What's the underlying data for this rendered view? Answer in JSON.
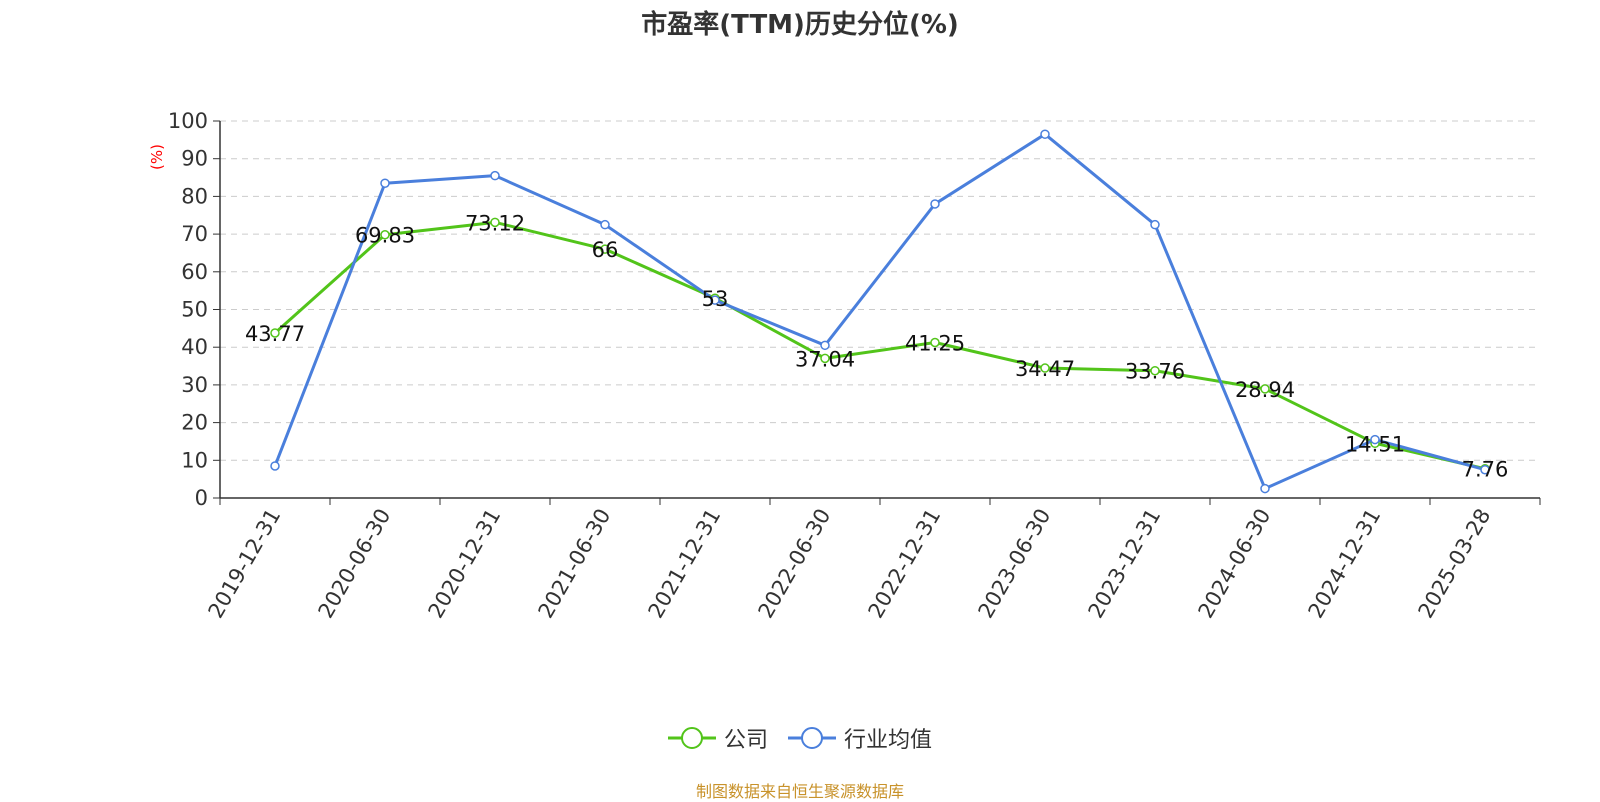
{
  "chart_data": {
    "type": "line",
    "title": "市盈率(TTM)历史分位(%)",
    "ylabel": "(%)",
    "xlabel": "",
    "ylim": [
      0,
      100
    ],
    "yticks": [
      0,
      10,
      20,
      30,
      40,
      50,
      60,
      70,
      80,
      90,
      100
    ],
    "categories": [
      "2019-12-31",
      "2020-06-30",
      "2020-12-31",
      "2021-06-30",
      "2021-12-31",
      "2022-06-30",
      "2022-12-31",
      "2023-06-30",
      "2023-12-31",
      "2024-06-30",
      "2024-12-31",
      "2025-03-28"
    ],
    "series": [
      {
        "name": "公司",
        "color": "#52c41a",
        "values": [
          43.77,
          69.83,
          73.12,
          66,
          53,
          37.04,
          41.25,
          34.47,
          33.76,
          28.94,
          14.51,
          7.76
        ],
        "data_labels": [
          "43.77",
          "69.83",
          "73.12",
          "66",
          "53",
          "37.04",
          "41.25",
          "34.47",
          "33.76",
          "28.94",
          "14.51",
          "7.76"
        ]
      },
      {
        "name": "行业均值",
        "color": "#4a7fdc",
        "values": [
          8.5,
          83.5,
          85.5,
          72.5,
          52.5,
          40.5,
          78,
          96.5,
          72.5,
          2.5,
          15.5,
          7.5
        ]
      }
    ],
    "grid": true,
    "legend_position": "bottom-center"
  },
  "source_text": "制图数据来自恒生聚源数据库",
  "colors": {
    "source": "#c8922a",
    "axis": "#333333",
    "grid": "#cccccc",
    "ylabel": "#ff0000"
  }
}
